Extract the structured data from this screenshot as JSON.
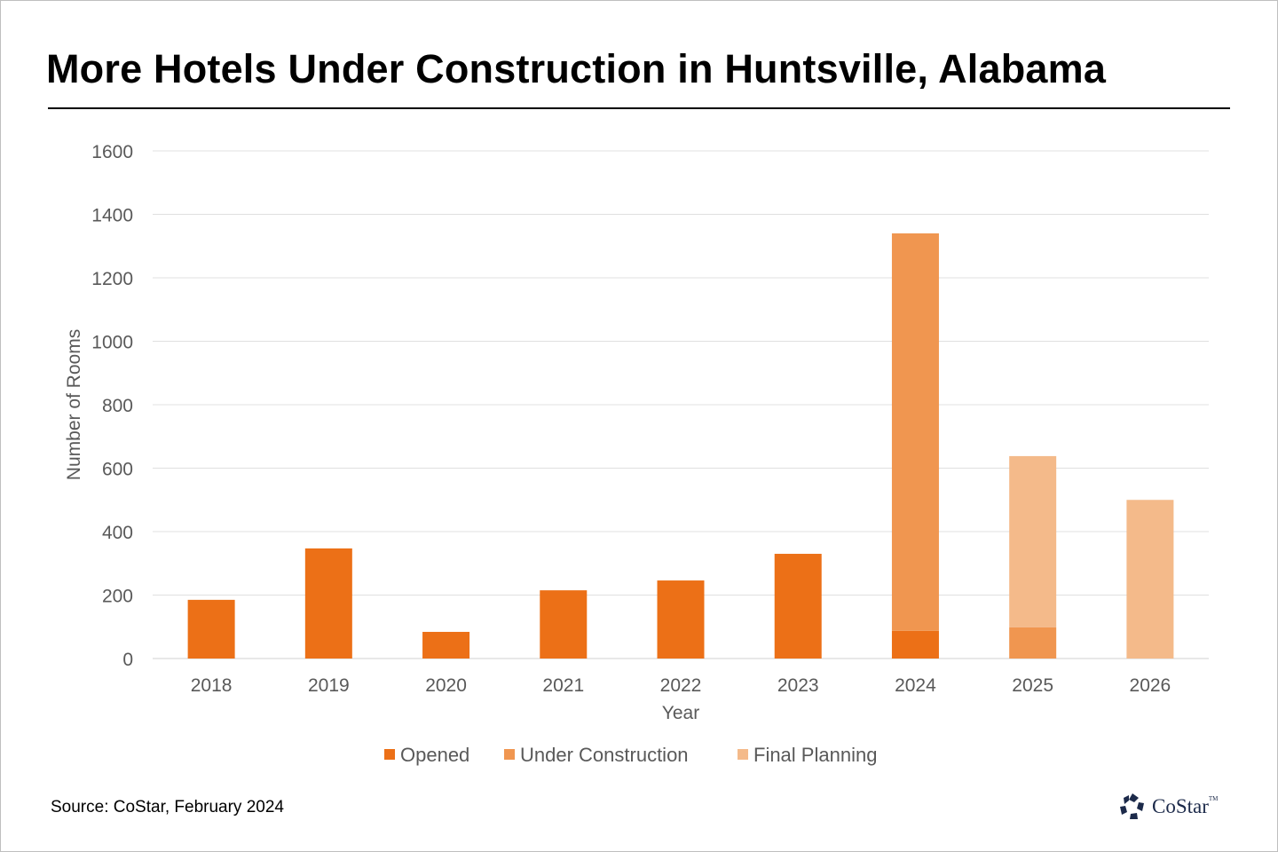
{
  "chart_data": {
    "type": "bar",
    "stacked": true,
    "title": "More Hotels Under Construction in Huntsville, Alabama",
    "xlabel": "Year",
    "ylabel": "Number of Rooms",
    "ylim": [
      0,
      1600
    ],
    "yticks": [
      0,
      200,
      400,
      600,
      800,
      1000,
      1200,
      1400,
      1600
    ],
    "grid": true,
    "legend_position": "bottom",
    "categories": [
      "2018",
      "2019",
      "2020",
      "2021",
      "2022",
      "2023",
      "2024",
      "2025",
      "2026"
    ],
    "series": [
      {
        "name": "Opened",
        "color": "#EC7017",
        "values": [
          185,
          347,
          84,
          215,
          246,
          330,
          87,
          0,
          0
        ]
      },
      {
        "name": "Under Construction",
        "color": "#F09650",
        "values": [
          0,
          0,
          0,
          0,
          0,
          0,
          1253,
          98,
          0
        ]
      },
      {
        "name": "Final Planning",
        "color": "#F4BA8A",
        "values": [
          0,
          0,
          0,
          0,
          0,
          0,
          0,
          540,
          500
        ]
      }
    ]
  },
  "source": "Source: CoStar, February 2024",
  "logo": {
    "text": "CoStar",
    "tm": "TM",
    "color": "#1c2a4a"
  }
}
